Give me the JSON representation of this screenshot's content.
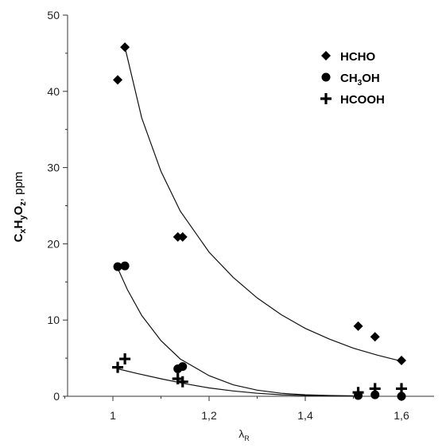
{
  "chart_data": {
    "type": "scatter",
    "xlabel": {
      "main": "λ",
      "sub": "R"
    },
    "ylabel": {
      "parts": [
        {
          "text": "C",
          "bold": true
        },
        {
          "text": "x",
          "sub": true,
          "bold": true
        },
        {
          "text": "H",
          "bold": true
        },
        {
          "text": "y",
          "sub": true,
          "bold": true
        },
        {
          "text": "O",
          "bold": true
        },
        {
          "text": "z",
          "sub": true,
          "bold": true
        },
        {
          "text": ", ppm",
          "bold": false
        }
      ]
    },
    "xlim": [
      0.9,
      1.7
    ],
    "ylim": [
      0,
      50
    ],
    "x_ticks": [
      1,
      1.2,
      1.4,
      1.6
    ],
    "x_tick_labels": [
      "1",
      "1,2",
      "1,4",
      "1,6"
    ],
    "y_ticks": [
      0,
      10,
      20,
      30,
      40,
      50
    ],
    "y_tick_labels": [
      "0",
      "10",
      "20",
      "30",
      "40",
      "50"
    ],
    "legend_position": "top-right",
    "series": [
      {
        "name": "HCHO",
        "legend_parts": [
          {
            "text": "HCHO"
          }
        ],
        "marker": "diamond",
        "points": [
          [
            1.01,
            41.5
          ],
          [
            1.025,
            45.8
          ],
          [
            1.135,
            20.9
          ],
          [
            1.145,
            20.9
          ],
          [
            1.51,
            9.2
          ],
          [
            1.545,
            7.8
          ],
          [
            1.6,
            4.7
          ]
        ],
        "fit": [
          [
            1.025,
            45.8
          ],
          [
            1.06,
            36.5
          ],
          [
            1.1,
            29.5
          ],
          [
            1.14,
            24.3
          ],
          [
            1.2,
            18.9
          ],
          [
            1.25,
            15.6
          ],
          [
            1.3,
            12.9
          ],
          [
            1.35,
            10.7
          ],
          [
            1.4,
            8.9
          ],
          [
            1.45,
            7.5
          ],
          [
            1.5,
            6.3
          ],
          [
            1.55,
            5.4
          ],
          [
            1.6,
            4.6
          ]
        ]
      },
      {
        "name": "CH3OH",
        "legend_parts": [
          {
            "text": "CH"
          },
          {
            "text": "3",
            "sub": true
          },
          {
            "text": "OH"
          }
        ],
        "marker": "circle",
        "points": [
          [
            1.01,
            17.0
          ],
          [
            1.025,
            17.1
          ],
          [
            1.135,
            3.6
          ],
          [
            1.145,
            3.9
          ],
          [
            1.51,
            0.1
          ],
          [
            1.545,
            0.2
          ],
          [
            1.6,
            0.0
          ]
        ],
        "fit": [
          [
            1.01,
            16.8
          ],
          [
            1.03,
            14.0
          ],
          [
            1.06,
            10.6
          ],
          [
            1.1,
            7.3
          ],
          [
            1.14,
            4.9
          ],
          [
            1.2,
            2.7
          ],
          [
            1.25,
            1.5
          ],
          [
            1.3,
            0.8
          ],
          [
            1.35,
            0.4
          ],
          [
            1.4,
            0.2
          ],
          [
            1.45,
            0.1
          ],
          [
            1.5,
            0.05
          ]
        ]
      },
      {
        "name": "HCOOH",
        "legend_parts": [
          {
            "text": "HCOOH"
          }
        ],
        "marker": "plus",
        "points": [
          [
            1.01,
            3.8
          ],
          [
            1.025,
            4.9
          ],
          [
            1.135,
            2.3
          ],
          [
            1.145,
            1.9
          ],
          [
            1.51,
            0.5
          ],
          [
            1.545,
            1.0
          ],
          [
            1.6,
            1.0
          ]
        ],
        "fit": [
          [
            1.01,
            3.6
          ],
          [
            1.05,
            3.0
          ],
          [
            1.1,
            2.3
          ],
          [
            1.15,
            1.65
          ],
          [
            1.2,
            1.1
          ],
          [
            1.25,
            0.7
          ],
          [
            1.3,
            0.4
          ],
          [
            1.35,
            0.2
          ],
          [
            1.4,
            0.1
          ],
          [
            1.45,
            0.05
          ],
          [
            1.5,
            0.02
          ]
        ]
      }
    ]
  }
}
